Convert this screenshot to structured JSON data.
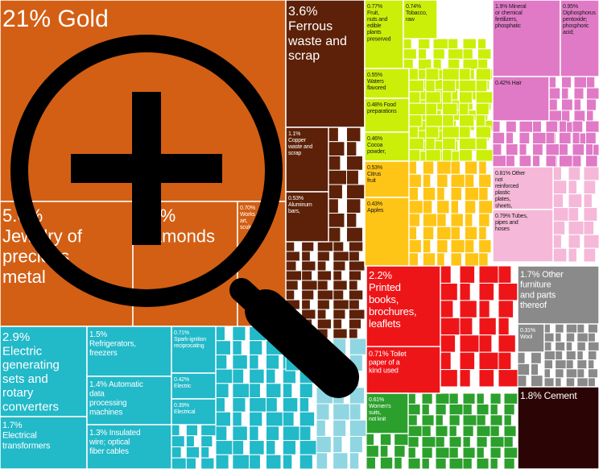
{
  "chart_data": {
    "type": "treemap",
    "title": "",
    "colors": {
      "gold": "#d35f14",
      "brown": "#5c2108",
      "lime": "#ccef0a",
      "pink": "#e07ac6",
      "pink_light": "#f5b8d8",
      "orange": "#ffc516",
      "red": "#ee1519",
      "gray": "#8a8a8a",
      "cyan": "#22b9c9",
      "cyan_light": "#8fd6e2",
      "green": "#2ca02c",
      "darkred": "#2b0505"
    },
    "items": [
      {
        "pct": "21%",
        "label": "Gold",
        "color_key": "gold"
      },
      {
        "pct": "5.6%",
        "label": "Jewelry of precious metal",
        "color_key": "gold"
      },
      {
        "pct": "4.6%",
        "label": "Diamonds",
        "color_key": "gold"
      },
      {
        "pct": "0.70%",
        "label": "Works of art, sculptures",
        "color_key": "gold"
      },
      {
        "pct": "3.6%",
        "label": "Ferrous waste and scrap",
        "color_key": "brown"
      },
      {
        "pct": "1.1%",
        "label": "Copper waste and scrap",
        "color_key": "brown"
      },
      {
        "pct": "0.53%",
        "label": "Aluminum bars,",
        "color_key": "brown"
      },
      {
        "pct": "0.77%",
        "label": "Fruit, nuts and edible plants preserved",
        "color_key": "lime"
      },
      {
        "pct": "0.74%",
        "label": "Tobacco, raw",
        "color_key": "lime"
      },
      {
        "pct": "0.55%",
        "label": "Waters flavored",
        "color_key": "lime"
      },
      {
        "pct": "0.48%",
        "label": "Food preparations",
        "color_key": "lime"
      },
      {
        "pct": "0.46%",
        "label": "Cocoa powder,",
        "color_key": "lime"
      },
      {
        "pct": "1.9%",
        "label": "Mineral or chemical fertilizers, phosphatic",
        "color_key": "pink"
      },
      {
        "pct": "0.95%",
        "label": "Diphosphorus pentoxide; phosphoric acid;",
        "color_key": "pink"
      },
      {
        "pct": "0.42%",
        "label": "Hair",
        "color_key": "pink"
      },
      {
        "pct": "0.53%",
        "label": "Citrus fruit",
        "color_key": "orange"
      },
      {
        "pct": "0.43%",
        "label": "Apples",
        "color_key": "orange"
      },
      {
        "pct": "0.81%",
        "label": "Other not reinforced plastic plates, sheets,",
        "color_key": "pink_light"
      },
      {
        "pct": "0.79%",
        "label": "Tubes, pipes and hoses",
        "color_key": "pink_light"
      },
      {
        "pct": "2.2%",
        "label": "Printed books, brochures, leaflets",
        "color_key": "red"
      },
      {
        "pct": "0.71%",
        "label": "Toilet paper of a kind used",
        "color_key": "red"
      },
      {
        "pct": "1.7%",
        "label": "Other furniture and parts thereof",
        "color_key": "gray"
      },
      {
        "pct": "0.31%",
        "label": "Wool",
        "color_key": "gray"
      },
      {
        "pct": "2.9%",
        "label": "Electric generating sets and rotary converters",
        "color_key": "cyan"
      },
      {
        "pct": "1.7%",
        "label": "Electrical transformers",
        "color_key": "cyan"
      },
      {
        "pct": "1.5%",
        "label": "Refrigerators, freezers",
        "color_key": "cyan"
      },
      {
        "pct": "1.4%",
        "label": "Automatic data processing machines",
        "color_key": "cyan"
      },
      {
        "pct": "1.3%",
        "label": "Insulated wire; optical fiber cables",
        "color_key": "cyan"
      },
      {
        "pct": "0.71%",
        "label": "Spark-ignition reciprocating",
        "color_key": "cyan"
      },
      {
        "pct": "0.42%",
        "label": "Electric",
        "color_key": "cyan"
      },
      {
        "pct": "0.39%",
        "label": "Electrical",
        "color_key": "cyan"
      },
      {
        "pct": "0.61%",
        "label": "Women's suits, not knit",
        "color_key": "green"
      },
      {
        "pct": "1.8%",
        "label": "Cement",
        "color_key": "darkred"
      }
    ]
  },
  "overlay": {
    "icon": "zoom-in-magnifier-icon"
  }
}
